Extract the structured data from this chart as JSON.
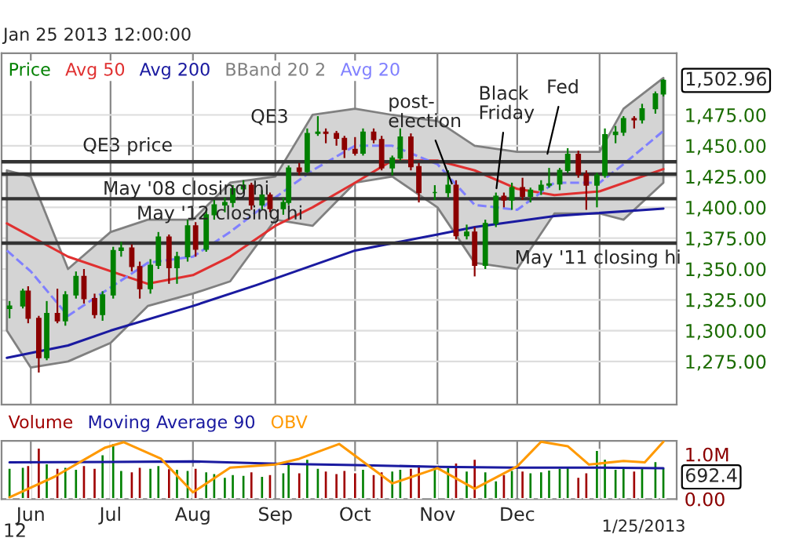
{
  "chart_data": [
    {
      "type": "candlestick",
      "subtitle": "Jan 25 2013 12:00:00",
      "x": [
        "2012-05-24",
        "2012-05-29",
        "2012-05-31",
        "2012-06-04",
        "2012-06-07",
        "2012-06-11",
        "2012-06-14",
        "2012-06-18",
        "2012-06-21",
        "2012-06-25",
        "2012-06-28",
        "2012-07-02",
        "2012-07-05",
        "2012-07-09",
        "2012-07-12",
        "2012-07-16",
        "2012-07-19",
        "2012-07-23",
        "2012-07-26",
        "2012-07-30",
        "2012-08-02",
        "2012-08-06",
        "2012-08-09",
        "2012-08-13",
        "2012-08-16",
        "2012-08-20",
        "2012-08-23",
        "2012-08-27",
        "2012-08-30",
        "2012-09-04",
        "2012-09-06",
        "2012-09-10",
        "2012-09-13",
        "2012-09-17",
        "2012-09-20",
        "2012-09-24",
        "2012-09-27",
        "2012-10-01",
        "2012-10-04",
        "2012-10-08",
        "2012-10-11",
        "2012-10-15",
        "2012-10-18",
        "2012-10-22",
        "2012-10-25",
        "2012-10-31",
        "2012-11-05",
        "2012-11-08",
        "2012-11-12",
        "2012-11-15",
        "2012-11-19",
        "2012-11-23",
        "2012-11-26",
        "2012-11-29",
        "2012-12-03",
        "2012-12-06",
        "2012-12-10",
        "2012-12-13",
        "2012-12-17",
        "2012-12-20",
        "2012-12-24",
        "2012-12-27",
        "2012-12-31",
        "2013-01-03",
        "2013-01-07",
        "2013-01-10",
        "2013-01-14",
        "2013-01-17",
        "2013-01-22",
        "2013-01-25"
      ],
      "ohlc": [
        [
          1318,
          1324,
          1310,
          1320
        ],
        [
          1320,
          1334,
          1318,
          1332
        ],
        [
          1332,
          1336,
          1306,
          1310
        ],
        [
          1310,
          1312,
          1266,
          1278
        ],
        [
          1278,
          1324,
          1276,
          1314
        ],
        [
          1314,
          1334,
          1306,
          1308
        ],
        [
          1308,
          1332,
          1304,
          1329
        ],
        [
          1329,
          1348,
          1326,
          1344
        ],
        [
          1344,
          1350,
          1322,
          1326
        ],
        [
          1326,
          1330,
          1310,
          1313
        ],
        [
          1313,
          1332,
          1308,
          1329
        ],
        [
          1329,
          1368,
          1326,
          1365
        ],
        [
          1365,
          1372,
          1360,
          1367
        ],
        [
          1367,
          1370,
          1348,
          1352
        ],
        [
          1352,
          1356,
          1326,
          1334
        ],
        [
          1334,
          1358,
          1330,
          1353
        ],
        [
          1353,
          1380,
          1350,
          1376
        ],
        [
          1376,
          1378,
          1338,
          1351
        ],
        [
          1351,
          1364,
          1338,
          1360
        ],
        [
          1360,
          1390,
          1356,
          1385
        ],
        [
          1385,
          1388,
          1360,
          1366
        ],
        [
          1366,
          1398,
          1364,
          1394
        ],
        [
          1394,
          1406,
          1390,
          1402
        ],
        [
          1402,
          1408,
          1396,
          1404
        ],
        [
          1404,
          1418,
          1400,
          1415
        ],
        [
          1415,
          1422,
          1412,
          1418
        ],
        [
          1418,
          1420,
          1398,
          1402
        ],
        [
          1402,
          1414,
          1398,
          1410
        ],
        [
          1410,
          1412,
          1396,
          1399
        ],
        [
          1399,
          1408,
          1394,
          1404
        ],
        [
          1404,
          1434,
          1402,
          1432
        ],
        [
          1432,
          1436,
          1426,
          1429
        ],
        [
          1429,
          1464,
          1428,
          1460
        ],
        [
          1460,
          1474,
          1458,
          1461
        ],
        [
          1461,
          1464,
          1452,
          1460
        ],
        [
          1460,
          1462,
          1450,
          1456
        ],
        [
          1456,
          1458,
          1440,
          1447
        ],
        [
          1447,
          1457,
          1442,
          1444
        ],
        [
          1444,
          1464,
          1442,
          1461
        ],
        [
          1461,
          1464,
          1452,
          1455
        ],
        [
          1455,
          1458,
          1430,
          1432
        ],
        [
          1432,
          1442,
          1426,
          1440
        ],
        [
          1440,
          1464,
          1438,
          1457
        ],
        [
          1457,
          1460,
          1430,
          1433
        ],
        [
          1433,
          1436,
          1404,
          1412
        ],
        [
          1412,
          1418,
          1406,
          1412
        ],
        [
          1412,
          1430,
          1408,
          1418
        ],
        [
          1418,
          1422,
          1374,
          1377
        ],
        [
          1377,
          1386,
          1374,
          1380
        ],
        [
          1380,
          1384,
          1344,
          1353
        ],
        [
          1353,
          1390,
          1350,
          1387
        ],
        [
          1387,
          1412,
          1384,
          1409
        ],
        [
          1409,
          1412,
          1400,
          1406
        ],
        [
          1406,
          1420,
          1398,
          1416
        ],
        [
          1416,
          1424,
          1406,
          1409
        ],
        [
          1409,
          1416,
          1404,
          1414
        ],
        [
          1414,
          1422,
          1410,
          1418
        ],
        [
          1418,
          1432,
          1416,
          1419
        ],
        [
          1419,
          1432,
          1414,
          1430
        ],
        [
          1430,
          1448,
          1428,
          1443
        ],
        [
          1443,
          1446,
          1424,
          1427
        ],
        [
          1427,
          1430,
          1398,
          1418
        ],
        [
          1418,
          1428,
          1400,
          1426
        ],
        [
          1426,
          1464,
          1424,
          1459
        ],
        [
          1459,
          1466,
          1452,
          1461
        ],
        [
          1461,
          1474,
          1458,
          1472
        ],
        [
          1472,
          1474,
          1464,
          1471
        ],
        [
          1471,
          1484,
          1468,
          1480
        ],
        [
          1480,
          1494,
          1476,
          1492
        ],
        [
          1492,
          1504,
          1490,
          1503
        ]
      ],
      "series": [
        {
          "name": "Avg 50",
          "type": "line",
          "color": "#e03030",
          "x": [
            "2012-05-23",
            "2012-06-15",
            "2012-07-15",
            "2012-08-01",
            "2012-08-15",
            "2012-09-01",
            "2012-09-15",
            "2012-10-01",
            "2012-10-15",
            "2012-11-01",
            "2012-11-15",
            "2012-12-01",
            "2012-12-15",
            "2013-01-01",
            "2013-01-25"
          ],
          "values": [
            1387,
            1360,
            1338,
            1345,
            1360,
            1385,
            1400,
            1420,
            1438,
            1438,
            1430,
            1415,
            1410,
            1413,
            1431
          ]
        },
        {
          "name": "Avg 200",
          "type": "line",
          "color": "#1a1aa0",
          "x": [
            "2012-05-23",
            "2012-06-15",
            "2012-07-01",
            "2012-08-01",
            "2012-08-25",
            "2012-10-01",
            "2012-11-01",
            "2012-11-15",
            "2012-12-15",
            "2013-01-25"
          ],
          "values": [
            1278,
            1288,
            1300,
            1320,
            1337,
            1365,
            1378,
            1384,
            1393,
            1399
          ]
        },
        {
          "name": "Avg 20",
          "type": "line",
          "color": "#8080ff",
          "line_style": "dashed",
          "x": [
            "2012-05-23",
            "2012-06-01",
            "2012-06-15",
            "2012-07-01",
            "2012-07-15",
            "2012-08-01",
            "2012-08-15",
            "2012-09-01",
            "2012-09-15",
            "2012-10-01",
            "2012-10-15",
            "2012-11-01",
            "2012-11-15",
            "2012-12-01",
            "2012-12-15",
            "2013-01-01",
            "2013-01-10",
            "2013-01-25"
          ],
          "values": [
            1365,
            1348,
            1312,
            1335,
            1355,
            1360,
            1380,
            1408,
            1430,
            1450,
            1450,
            1435,
            1402,
            1398,
            1420,
            1420,
            1435,
            1462
          ],
          "lower": [
            1300,
            1270,
            1275,
            1290,
            1320,
            1330,
            1340,
            1390,
            1385,
            1420,
            1425,
            1400,
            1355,
            1350,
            1395,
            1395,
            1390,
            1420
          ],
          "upper": [
            1430,
            1425,
            1350,
            1380,
            1390,
            1390,
            1420,
            1425,
            1475,
            1480,
            1475,
            1470,
            1450,
            1445,
            1445,
            1445,
            1480,
            1505
          ]
        }
      ],
      "ref_lines": [
        {
          "axis": "y",
          "value": 1437,
          "label": "QE3 price",
          "color": "#333333"
        },
        {
          "axis": "y",
          "value": 1427,
          "label": "May '08 closing hi",
          "color": "#333333"
        },
        {
          "axis": "y",
          "value": 1407,
          "label": "May '12 closing hi",
          "color": "#333333"
        },
        {
          "axis": "y",
          "value": 1371,
          "label": "May '11 closing hi",
          "color": "#333333"
        }
      ],
      "annotations": [
        "Price",
        "1,502.96",
        "BBand 20 2",
        {
          "text": "QE3",
          "x": "2012-09-13",
          "y": 1462
        },
        {
          "text": "post-\nelection",
          "x": "2012-11-07",
          "y": 1416
        },
        {
          "text": "Black\nFriday",
          "x": "2012-11-23",
          "y": 1412
        },
        {
          "text": "Fed",
          "x": "2012-12-12",
          "y": 1440
        }
      ],
      "xlim": [
        "2012-05-21",
        "2013-01-30"
      ],
      "xticks": [
        {
          "value": "2012-06-01",
          "label": null
        },
        {
          "value": "2012-07-01",
          "label": null
        },
        {
          "value": "2012-08-01",
          "label": null
        },
        {
          "value": "2012-09-01",
          "label": null
        },
        {
          "value": "2012-10-01",
          "label": null
        },
        {
          "value": "2012-11-01",
          "label": null
        },
        {
          "value": "2012-12-01",
          "label": null
        },
        {
          "value": "2013-01-01",
          "label": null
        }
      ],
      "ylim": [
        1240,
        1525
      ],
      "yticks": [
        {
          "value": 1275,
          "label": "1,275.00"
        },
        {
          "value": 1300,
          "label": "1,300.00"
        },
        {
          "value": 1325,
          "label": "1,325.00"
        },
        {
          "value": 1350,
          "label": "1,350.00"
        },
        {
          "value": 1375,
          "label": "1,375.00"
        },
        {
          "value": 1400,
          "label": "1,400.00"
        },
        {
          "value": 1425,
          "label": "1,425.00"
        },
        {
          "value": 1450,
          "label": "1,450.00"
        },
        {
          "value": 1475,
          "label": "1,475.00"
        }
      ],
      "tick_labels": "y",
      "grid": true,
      "legend": "top left"
    },
    {
      "type": "bar",
      "x": [
        "2012-05-24",
        "2012-05-29",
        "2012-05-31",
        "2012-06-04",
        "2012-06-07",
        "2012-06-11",
        "2012-06-14",
        "2012-06-18",
        "2012-06-21",
        "2012-06-25",
        "2012-06-28",
        "2012-07-02",
        "2012-07-05",
        "2012-07-09",
        "2012-07-12",
        "2012-07-16",
        "2012-07-19",
        "2012-07-23",
        "2012-07-26",
        "2012-07-30",
        "2012-08-02",
        "2012-08-06",
        "2012-08-09",
        "2012-08-13",
        "2012-08-16",
        "2012-08-20",
        "2012-08-23",
        "2012-08-27",
        "2012-08-30",
        "2012-09-04",
        "2012-09-06",
        "2012-09-10",
        "2012-09-13",
        "2012-09-17",
        "2012-09-20",
        "2012-09-24",
        "2012-09-27",
        "2012-10-01",
        "2012-10-04",
        "2012-10-08",
        "2012-10-11",
        "2012-10-15",
        "2012-10-18",
        "2012-10-22",
        "2012-10-25",
        "2012-10-31",
        "2012-11-05",
        "2012-11-08",
        "2012-11-12",
        "2012-11-15",
        "2012-11-19",
        "2012-11-23",
        "2012-11-26",
        "2012-11-29",
        "2012-12-03",
        "2012-12-06",
        "2012-12-10",
        "2012-12-13",
        "2012-12-17",
        "2012-12-20",
        "2012-12-24",
        "2012-12-27",
        "2012-12-31",
        "2013-01-03",
        "2013-01-07",
        "2013-01-10",
        "2013-01-14",
        "2013-01-17",
        "2013-01-22",
        "2013-01-25"
      ],
      "series": [
        {
          "name": "Volume",
          "type": "bar",
          "color": "#a00000",
          "values": [
            0.7,
            0.72,
            0.76,
            1.15,
            0.8,
            0.7,
            0.72,
            0.68,
            0.76,
            0.7,
            1.0,
            1.25,
            0.65,
            0.62,
            0.72,
            0.7,
            0.76,
            0.69,
            0.68,
            0.65,
            0.7,
            0.62,
            0.58,
            0.5,
            0.56,
            0.54,
            0.62,
            0.52,
            0.56,
            0.6,
            0.8,
            0.6,
            0.9,
            0.7,
            0.64,
            0.58,
            0.65,
            0.6,
            0.68,
            0.56,
            0.62,
            0.64,
            0.68,
            0.7,
            0.78,
            0.75,
            0.72,
            0.82,
            0.64,
            0.9,
            0.62,
            0.42,
            0.56,
            0.65,
            0.64,
            0.6,
            0.62,
            0.66,
            0.7,
            0.72,
            0.5,
            0.6,
            1.1,
            0.9,
            0.68,
            0.7,
            0.64,
            0.72,
            0.85,
            0.7
          ],
          "colors": [
            "#008000",
            "#008000",
            "#a00000",
            "#a00000",
            "#008000",
            "#a00000",
            "#008000",
            "#008000",
            "#a00000",
            "#a00000",
            "#008000",
            "#008000",
            "#008000",
            "#a00000",
            "#a00000",
            "#008000",
            "#008000",
            "#a00000",
            "#008000",
            "#008000",
            "#a00000",
            "#008000",
            "#008000",
            "#008000",
            "#008000",
            "#008000",
            "#a00000",
            "#008000",
            "#a00000",
            "#008000",
            "#008000",
            "#a00000",
            "#008000",
            "#008000",
            "#a00000",
            "#a00000",
            "#a00000",
            "#a00000",
            "#008000",
            "#a00000",
            "#a00000",
            "#008000",
            "#008000",
            "#a00000",
            "#a00000",
            "#008000",
            "#008000",
            "#a00000",
            "#008000",
            "#a00000",
            "#008000",
            "#008000",
            "#a00000",
            "#008000",
            "#a00000",
            "#008000",
            "#008000",
            "#008000",
            "#008000",
            "#008000",
            "#a00000",
            "#a00000",
            "#008000",
            "#008000",
            "#008000",
            "#008000",
            "#a00000",
            "#008000",
            "#008000",
            "#008000"
          ]
        },
        {
          "name": "Moving Average 90",
          "type": "line",
          "color": "#1a1aa0",
          "x": [
            "2012-05-24",
            "2012-07-01",
            "2012-08-01",
            "2012-09-01",
            "2012-10-01",
            "2012-11-01",
            "2012-12-01",
            "2013-01-01",
            "2013-01-25"
          ],
          "values": [
            0.82,
            0.83,
            0.84,
            0.79,
            0.76,
            0.72,
            0.7,
            0.7,
            0.69
          ]
        },
        {
          "name": "OBV",
          "type": "line",
          "color": "#ff9900",
          "x": [
            "2012-05-24",
            "2012-06-10",
            "2012-06-29",
            "2012-07-06",
            "2012-07-20",
            "2012-08-01",
            "2012-08-15",
            "2012-09-01",
            "2012-09-10",
            "2012-09-25",
            "2012-10-15",
            "2012-11-01",
            "2012-11-15",
            "2012-12-01",
            "2012-12-10",
            "2012-12-20",
            "2012-12-28",
            "2013-01-10",
            "2013-01-18",
            "2013-01-25"
          ],
          "values": [
            0.04,
            0.5,
            1.15,
            1.27,
            0.9,
            0.15,
            0.7,
            0.77,
            0.9,
            1.23,
            0.35,
            0.69,
            0.23,
            0.73,
            1.28,
            1.18,
            0.77,
            0.85,
            0.82,
            1.28
          ]
        }
      ],
      "annotations": [
        "692.4",
        "1/25/2013",
        "12"
      ],
      "xlim": [
        "2012-05-21",
        "2013-01-30"
      ],
      "xticks": [
        {
          "value": "2012-06-01",
          "label": "Jun"
        },
        {
          "value": "2012-07-01",
          "label": "Jul"
        },
        {
          "value": "2012-08-01",
          "label": "Aug"
        },
        {
          "value": "2012-09-01",
          "label": "Sep"
        },
        {
          "value": "2012-10-01",
          "label": "Oct"
        },
        {
          "value": "2012-11-01",
          "label": "Nov"
        },
        {
          "value": "2012-12-01",
          "label": "Dec"
        },
        {
          "value": "2013-01-01",
          "label": null
        }
      ],
      "ylim": [
        0,
        1.3
      ],
      "yticks": [
        {
          "value": 0,
          "label": "0.00"
        },
        {
          "value": 1.0,
          "label": "1.0M"
        }
      ],
      "grid": "x",
      "legend": "top left"
    }
  ]
}
